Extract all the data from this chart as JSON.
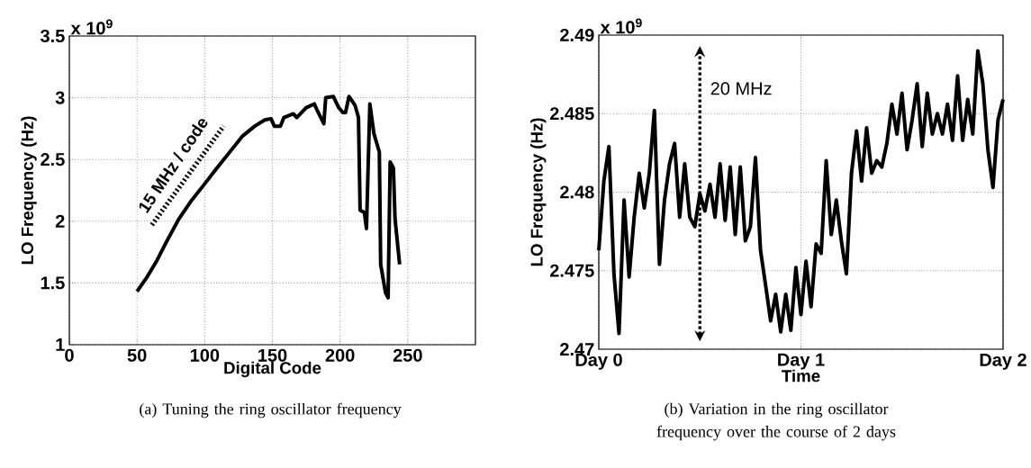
{
  "chart_data": [
    {
      "type": "line",
      "xlabel": "Digital Code",
      "ylabel": "LO Frequency (Hz)",
      "xlim": [
        0,
        300
      ],
      "xticks": [
        0,
        50,
        100,
        150,
        200,
        250
      ],
      "ylim": [
        1,
        3.5
      ],
      "yticks": [
        1,
        1.5,
        2,
        2.5,
        3,
        3.5
      ],
      "grid": true,
      "annotations": [
        "x 10$^{9}$",
        "15 MHz / code",
        "(a) Tuning the ring oscillator frequency"
      ],
      "series": [
        {
          "color": "#000000",
          "x": [
            50,
            57.5,
            64.6,
            71.6,
            81,
            90.4,
            99.8,
            109,
            118.5,
            128,
            137,
            144.4,
            149,
            151.4,
            156,
            158.5,
            165.5,
            168,
            175,
            181,
            183,
            188,
            189.4,
            195,
            199,
            202,
            204,
            206.6,
            211,
            213.6,
            214.8,
            218,
            219.5,
            222,
            225,
            229,
            230,
            233.6,
            235.5,
            237,
            239.4,
            240.6,
            244
          ],
          "values": [
            1.43,
            1.55,
            1.68,
            1.83,
            2.02,
            2.17,
            2.3,
            2.43,
            2.56,
            2.69,
            2.77,
            2.82,
            2.83,
            2.77,
            2.77,
            2.84,
            2.87,
            2.84,
            2.92,
            2.95,
            2.9,
            2.79,
            3.0,
            3.01,
            2.92,
            2.88,
            2.88,
            3.01,
            2.94,
            2.84,
            2.09,
            2.07,
            1.94,
            2.95,
            2.71,
            2.56,
            1.65,
            1.42,
            1.38,
            2.48,
            2.43,
            2.02,
            1.65
          ]
        }
      ]
    },
    {
      "type": "line",
      "xlabel": "Time",
      "ylabel": "LO Frequency (Hz)",
      "categories": [
        "Day 0",
        null,
        null,
        null,
        null,
        null,
        null,
        null,
        null,
        null,
        null,
        null,
        null,
        null,
        null,
        null,
        null,
        null,
        null,
        null,
        null,
        null,
        null,
        null,
        null,
        null,
        null,
        null,
        null,
        null,
        null,
        null,
        null,
        null,
        null,
        null,
        null,
        null,
        null,
        null,
        "Day 1",
        null,
        null,
        null,
        null,
        null,
        null,
        null,
        null,
        null,
        null,
        null,
        null,
        null,
        null,
        null,
        null,
        null,
        null,
        null,
        null,
        null,
        null,
        null,
        null,
        null,
        null,
        null,
        null,
        null,
        null,
        null,
        null,
        null,
        null,
        null,
        null,
        null,
        null,
        null,
        "Day 2"
      ],
      "ylim": [
        2.47,
        2.49
      ],
      "yticks": [
        2.47,
        2.475,
        2.48,
        2.485,
        2.49
      ],
      "grid": true,
      "annotations": [
        "x 10$^{9}$",
        "20 MHz",
        "(b) Variation in the ring oscillator frequency over the course of 2 days"
      ],
      "series": [
        {
          "color": "#000000",
          "values": [
            2.4763,
            2.4807,
            2.4829,
            2.4748,
            2.471,
            2.4795,
            2.4746,
            2.4784,
            2.4812,
            2.479,
            2.4812,
            2.4852,
            2.4754,
            2.4795,
            2.4818,
            2.4831,
            2.4784,
            2.4818,
            2.4784,
            2.4778,
            2.4799,
            2.4788,
            2.4805,
            2.4784,
            2.4818,
            2.4782,
            2.4816,
            2.4773,
            2.4816,
            2.4769,
            2.4778,
            2.4822,
            2.4763,
            2.4741,
            2.4718,
            2.4735,
            2.4711,
            2.4735,
            2.4712,
            2.4752,
            2.4722,
            2.4756,
            2.4727,
            2.4767,
            2.4761,
            2.482,
            2.4773,
            2.4795,
            2.4769,
            2.4748,
            2.4812,
            2.4839,
            2.4807,
            2.4841,
            2.4812,
            2.482,
            2.4816,
            2.4831,
            2.4856,
            2.4837,
            2.4863,
            2.4827,
            2.4846,
            2.4869,
            2.4829,
            2.4863,
            2.4837,
            2.485,
            2.4837,
            2.4856,
            2.4833,
            2.4874,
            2.4833,
            2.4859,
            2.4837,
            2.489,
            2.4869,
            2.4827,
            2.4803,
            2.4846,
            2.4859
          ]
        }
      ]
    }
  ]
}
